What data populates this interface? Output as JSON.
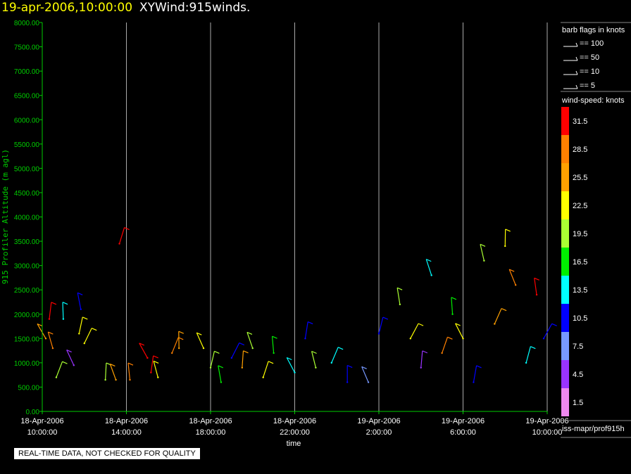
{
  "header": {
    "datetime": "19-apr-2006,10:00:00",
    "product": "XYWind:915winds."
  },
  "notice": "REAL-TIME DATA, NOT CHECKED FOR QUALITY",
  "footer_path": "iss-mapr/prof915h",
  "colors": {
    "background": "#000000",
    "axis": "#00cc00",
    "gridline": "#bbbbbb",
    "text": "#ffffff",
    "title_date": "#ffff00"
  },
  "chart_data": {
    "type": "scatter",
    "title": "19-apr-2006,10:00:00  XYWind:915winds.",
    "xlabel": "time",
    "ylabel": "915 Profiler Altitude (m agl)",
    "ylim": [
      0,
      8000
    ],
    "yticks": [
      "0.00",
      "500.00",
      "1000.00",
      "1500.00",
      "2000.00",
      "2500.00",
      "3000.00",
      "3500.00",
      "4000.00",
      "4500.00",
      "5000.00",
      "5500.00",
      "6000.00",
      "6500.00",
      "7000.00",
      "7500.00",
      "8000.00"
    ],
    "xlim": [
      "2006-04-18 10:00",
      "2006-04-19 10:00"
    ],
    "xticks": [
      {
        "date": "18-Apr-2006",
        "time": "10:00:00"
      },
      {
        "date": "18-Apr-2006",
        "time": "14:00:00"
      },
      {
        "date": "18-Apr-2006",
        "time": "18:00:00"
      },
      {
        "date": "18-Apr-2006",
        "time": "22:00:00"
      },
      {
        "date": "19-Apr-2006",
        "time": "2:00:00"
      },
      {
        "date": "19-Apr-2006",
        "time": "6:00:00"
      },
      {
        "date": "19-Apr-2006",
        "time": "10:00:00"
      }
    ],
    "vertical_grid": true,
    "barb_legend": {
      "title": "barb flags in knots",
      "items": [
        "== 100",
        "== 50",
        "== 10",
        "== 5"
      ]
    },
    "colorbar": {
      "title": "wind-speed: knots",
      "labels": [
        "31.5",
        "28.5",
        "25.5",
        "22.5",
        "19.5",
        "16.5",
        "13.5",
        "10.5",
        "7.5",
        "4.5",
        "1.5"
      ],
      "colors": [
        "#ff0000",
        "#ff8000",
        "#ffa000",
        "#ffff00",
        "#aaff33",
        "#00ee00",
        "#00ffff",
        "#0000ff",
        "#7799ff",
        "#9933ff",
        "#ee88ee"
      ]
    },
    "series": [
      {
        "values": [
          {
            "x": "2006-04-18 10:10",
            "y": 1500,
            "speed": 25.5
          },
          {
            "x": "2006-04-18 10:20",
            "y": 1900,
            "speed": 31.5
          },
          {
            "x": "2006-04-18 10:30",
            "y": 1300,
            "speed": 28.5
          },
          {
            "x": "2006-04-18 10:40",
            "y": 700,
            "speed": 19.5
          },
          {
            "x": "2006-04-18 11:00",
            "y": 1900,
            "speed": 13.5
          },
          {
            "x": "2006-04-18 11:30",
            "y": 950,
            "speed": 4.5
          },
          {
            "x": "2006-04-18 11:45",
            "y": 1600,
            "speed": 22.5
          },
          {
            "x": "2006-04-18 11:50",
            "y": 2100,
            "speed": 10.5
          },
          {
            "x": "2006-04-18 12:00",
            "y": 1400,
            "speed": 22.5
          },
          {
            "x": "2006-04-18 13:00",
            "y": 650,
            "speed": 19.5
          },
          {
            "x": "2006-04-18 13:30",
            "y": 650,
            "speed": 25.5
          },
          {
            "x": "2006-04-18 13:40",
            "y": 3450,
            "speed": 31.5
          },
          {
            "x": "2006-04-18 14:10",
            "y": 650,
            "speed": 28.5
          },
          {
            "x": "2006-04-18 15:00",
            "y": 1100,
            "speed": 31.5
          },
          {
            "x": "2006-04-18 15:10",
            "y": 800,
            "speed": 31.5
          },
          {
            "x": "2006-04-18 15:30",
            "y": 700,
            "speed": 22.5
          },
          {
            "x": "2006-04-18 16:10",
            "y": 1200,
            "speed": 28.5
          },
          {
            "x": "2006-04-18 16:30",
            "y": 1300,
            "speed": 25.5
          },
          {
            "x": "2006-04-18 17:40",
            "y": 1300,
            "speed": 22.5
          },
          {
            "x": "2006-04-18 18:00",
            "y": 900,
            "speed": 19.5
          },
          {
            "x": "2006-04-18 18:30",
            "y": 600,
            "speed": 16.5
          },
          {
            "x": "2006-04-18 19:00",
            "y": 1100,
            "speed": 10.5
          },
          {
            "x": "2006-04-18 19:30",
            "y": 900,
            "speed": 25.5
          },
          {
            "x": "2006-04-18 20:00",
            "y": 1300,
            "speed": 19.5
          },
          {
            "x": "2006-04-18 20:30",
            "y": 700,
            "speed": 22.5
          },
          {
            "x": "2006-04-18 21:00",
            "y": 1200,
            "speed": 16.5
          },
          {
            "x": "2006-04-18 22:00",
            "y": 800,
            "speed": 13.5
          },
          {
            "x": "2006-04-18 22:30",
            "y": 1500,
            "speed": 10.5
          },
          {
            "x": "2006-04-18 23:00",
            "y": 900,
            "speed": 19.5
          },
          {
            "x": "2006-04-18 23:45",
            "y": 1000,
            "speed": 13.5
          },
          {
            "x": "2006-04-19 00:30",
            "y": 600,
            "speed": 10.5
          },
          {
            "x": "2006-04-19 01:30",
            "y": 600,
            "speed": 7.5
          },
          {
            "x": "2006-04-19 02:00",
            "y": 1600,
            "speed": 10.5
          },
          {
            "x": "2006-04-19 03:00",
            "y": 2200,
            "speed": 19.5
          },
          {
            "x": "2006-04-19 03:30",
            "y": 1500,
            "speed": 22.5
          },
          {
            "x": "2006-04-19 04:00",
            "y": 900,
            "speed": 4.5
          },
          {
            "x": "2006-04-19 04:30",
            "y": 2800,
            "speed": 13.5
          },
          {
            "x": "2006-04-19 05:00",
            "y": 1200,
            "speed": 28.5
          },
          {
            "x": "2006-04-19 05:30",
            "y": 2000,
            "speed": 16.5
          },
          {
            "x": "2006-04-19 06:00",
            "y": 1500,
            "speed": 22.5
          },
          {
            "x": "2006-04-19 06:30",
            "y": 600,
            "speed": 10.5
          },
          {
            "x": "2006-04-19 07:00",
            "y": 3100,
            "speed": 19.5
          },
          {
            "x": "2006-04-19 07:30",
            "y": 1800,
            "speed": 25.5
          },
          {
            "x": "2006-04-19 08:00",
            "y": 3400,
            "speed": 22.5
          },
          {
            "x": "2006-04-19 08:30",
            "y": 2600,
            "speed": 28.5
          },
          {
            "x": "2006-04-19 09:00",
            "y": 1000,
            "speed": 13.5
          },
          {
            "x": "2006-04-19 09:30",
            "y": 2400,
            "speed": 31.5
          },
          {
            "x": "2006-04-19 09:50",
            "y": 1500,
            "speed": 10.5
          }
        ]
      }
    ]
  }
}
